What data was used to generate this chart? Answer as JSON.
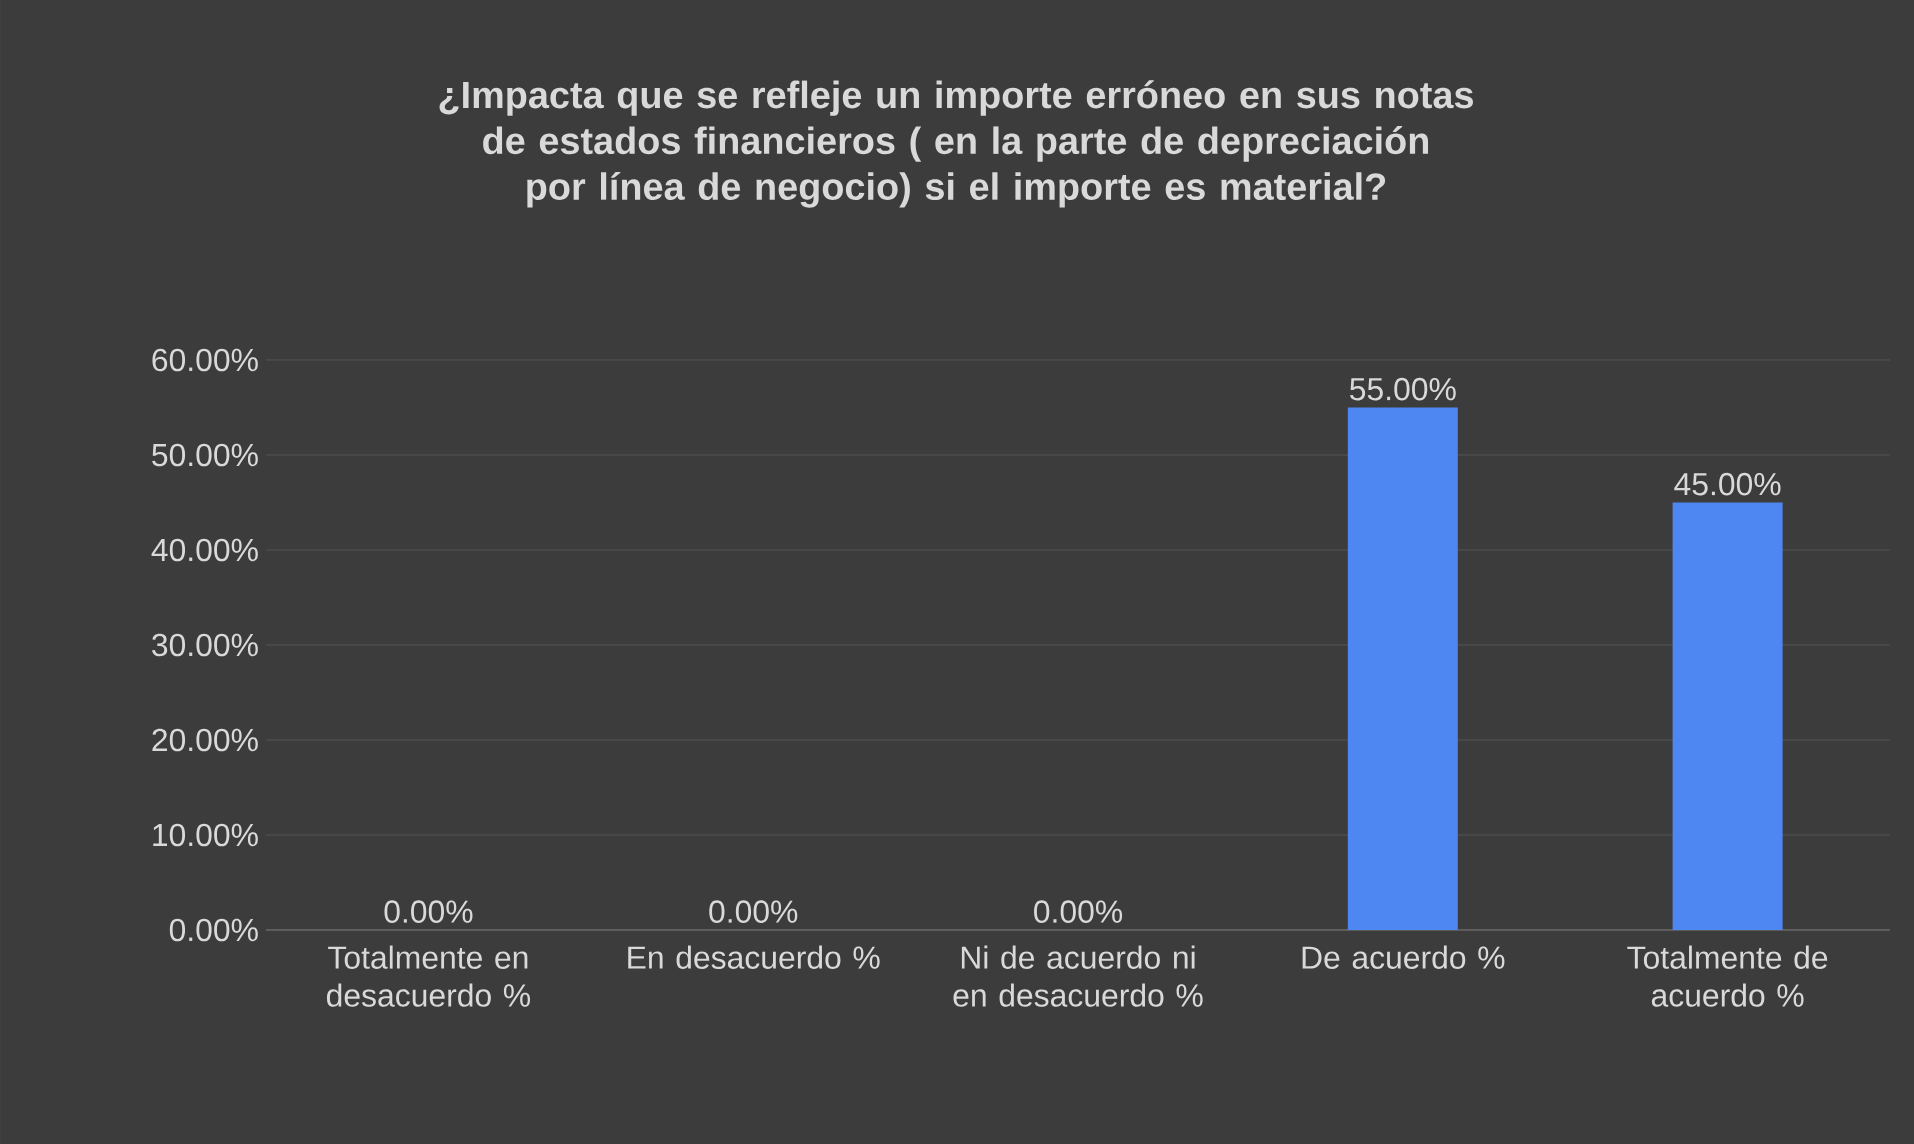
{
  "chart_data": {
    "type": "bar",
    "title": "¿Impacta que se refleje un importe erróneo en sus notas de estados financieros ( en la parte de depreciación por línea de negocio) si el importe es material?",
    "categories": [
      "Totalmente en desacuerdo %",
      "En desacuerdo %",
      "Ni de acuerdo ni en desacuerdo %",
      "De acuerdo %",
      "Totalmente de acuerdo %"
    ],
    "values": [
      0,
      0,
      0,
      55,
      45
    ],
    "value_labels": [
      "0.00%",
      "0.00%",
      "0.00%",
      "55.00%",
      "45.00%"
    ],
    "color": "#4e87f2",
    "ylim": [
      0,
      60
    ],
    "yticks": [
      {
        "value": 0,
        "label": "0.00%"
      },
      {
        "value": 10,
        "label": "10.00%"
      },
      {
        "value": 20,
        "label": "20.00%"
      },
      {
        "value": 30,
        "label": "30.00%"
      },
      {
        "value": 40,
        "label": "40.00%"
      },
      {
        "value": 50,
        "label": "50.00%"
      },
      {
        "value": 60,
        "label": "60.00%"
      }
    ],
    "grid": "y"
  }
}
